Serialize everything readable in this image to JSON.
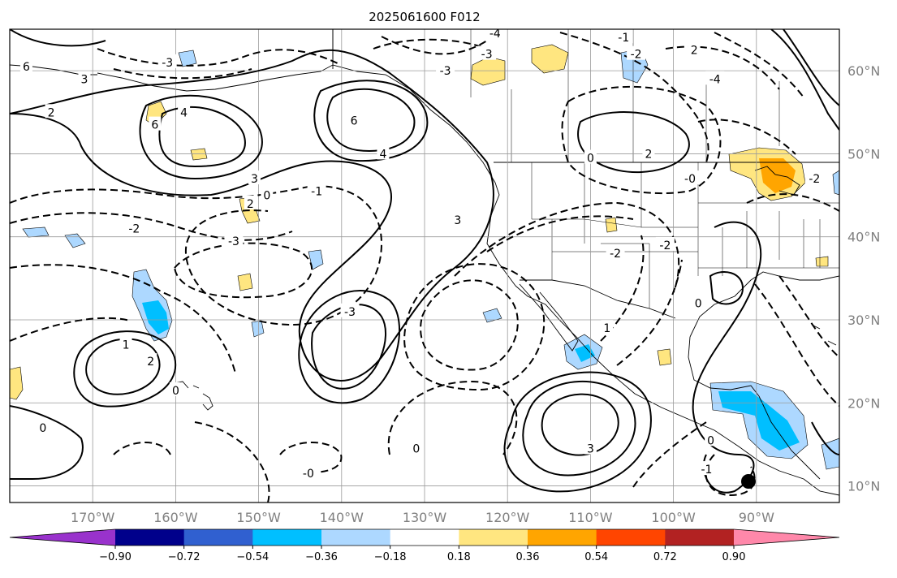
{
  "chart_data": {
    "type": "contour",
    "title": "2025061600 F012",
    "projection": "cylindrical",
    "lon_range": [
      -180,
      -80
    ],
    "lat_range": [
      8,
      65
    ],
    "lon_ticks": [
      "170°W",
      "160°W",
      "150°W",
      "140°W",
      "130°W",
      "120°W",
      "110°W",
      "100°W",
      "90°W"
    ],
    "lon_tick_values": [
      -170,
      -160,
      -150,
      -140,
      -130,
      -120,
      -110,
      -100,
      -90
    ],
    "lat_ticks": [
      "10°N",
      "20°N",
      "30°N",
      "40°N",
      "50°N",
      "60°N"
    ],
    "lat_tick_values": [
      10,
      20,
      30,
      40,
      50,
      60
    ],
    "grid": true,
    "colorbar": {
      "orientation": "horizontal",
      "extend": "both",
      "levels": [
        -0.9,
        -0.72,
        -0.54,
        -0.36,
        -0.18,
        0.18,
        0.36,
        0.54,
        0.72,
        0.9
      ],
      "tick_labels": [
        "−0.90",
        "−0.72",
        "−0.54",
        "−0.36",
        "−0.18",
        "0.18",
        "0.36",
        "0.54",
        "0.72",
        "0.90"
      ],
      "colors": [
        "#9932cc",
        "#00008b",
        "#3060d0",
        "#00bfff",
        "#add8ff",
        "#ffffff",
        "#ffe680",
        "#ffa500",
        "#ff4500",
        "#b22222",
        "#ff88aa"
      ]
    },
    "contour_labels": [
      {
        "text": "6",
        "lon": -162.5,
        "lat": 53.5
      },
      {
        "text": "4",
        "lon": -159,
        "lat": 55
      },
      {
        "text": "6",
        "lon": -138.5,
        "lat": 54
      },
      {
        "text": "4",
        "lon": -135,
        "lat": 50
      },
      {
        "text": "3",
        "lon": -150.5,
        "lat": 47
      },
      {
        "text": "2",
        "lon": -151,
        "lat": 44
      },
      {
        "text": "0",
        "lon": -149,
        "lat": 45
      },
      {
        "text": "-1",
        "lon": -143,
        "lat": 45.5
      },
      {
        "text": "-2",
        "lon": -165,
        "lat": 41
      },
      {
        "text": "-3",
        "lon": -153,
        "lat": 39.5
      },
      {
        "text": "-3",
        "lon": -139,
        "lat": 31
      },
      {
        "text": "3",
        "lon": -126,
        "lat": 42
      },
      {
        "text": "2",
        "lon": -163,
        "lat": 25
      },
      {
        "text": "1",
        "lon": -166,
        "lat": 27
      },
      {
        "text": "0",
        "lon": -160,
        "lat": 21.5
      },
      {
        "text": "0",
        "lon": -176,
        "lat": 17
      },
      {
        "text": "-0",
        "lon": -144,
        "lat": 11.5
      },
      {
        "text": "0",
        "lon": -131,
        "lat": 14.5
      },
      {
        "text": "3",
        "lon": -110,
        "lat": 14.5
      },
      {
        "text": "-2",
        "lon": -107,
        "lat": 38
      },
      {
        "text": "-2",
        "lon": -101,
        "lat": 39
      },
      {
        "text": "1",
        "lon": -108,
        "lat": 29
      },
      {
        "text": "0",
        "lon": -95.5,
        "lat": 15.5
      },
      {
        "text": "-1",
        "lon": -96,
        "lat": 12
      },
      {
        "text": "2",
        "lon": -103,
        "lat": 50
      },
      {
        "text": "0",
        "lon": -110,
        "lat": 49.5
      },
      {
        "text": "-0",
        "lon": -98,
        "lat": 47
      },
      {
        "text": "-2",
        "lon": -83,
        "lat": 47
      },
      {
        "text": "-3",
        "lon": -122.5,
        "lat": 62
      },
      {
        "text": "-4",
        "lon": -121.5,
        "lat": 64.5
      },
      {
        "text": "-1",
        "lon": -106,
        "lat": 64
      },
      {
        "text": "-2",
        "lon": -104.5,
        "lat": 62
      },
      {
        "text": "2",
        "lon": -97.5,
        "lat": 62.5
      },
      {
        "text": "-3",
        "lon": -127.5,
        "lat": 60
      },
      {
        "text": "-4",
        "lon": -95,
        "lat": 59
      },
      {
        "text": "-3",
        "lon": -161,
        "lat": 61
      },
      {
        "text": "6",
        "lon": -178,
        "lat": 60.5
      },
      {
        "text": "3",
        "lon": -171,
        "lat": 59
      },
      {
        "text": "2",
        "lon": -175,
        "lat": 55
      },
      {
        "text": "0",
        "lon": -97,
        "lat": 32
      }
    ]
  }
}
